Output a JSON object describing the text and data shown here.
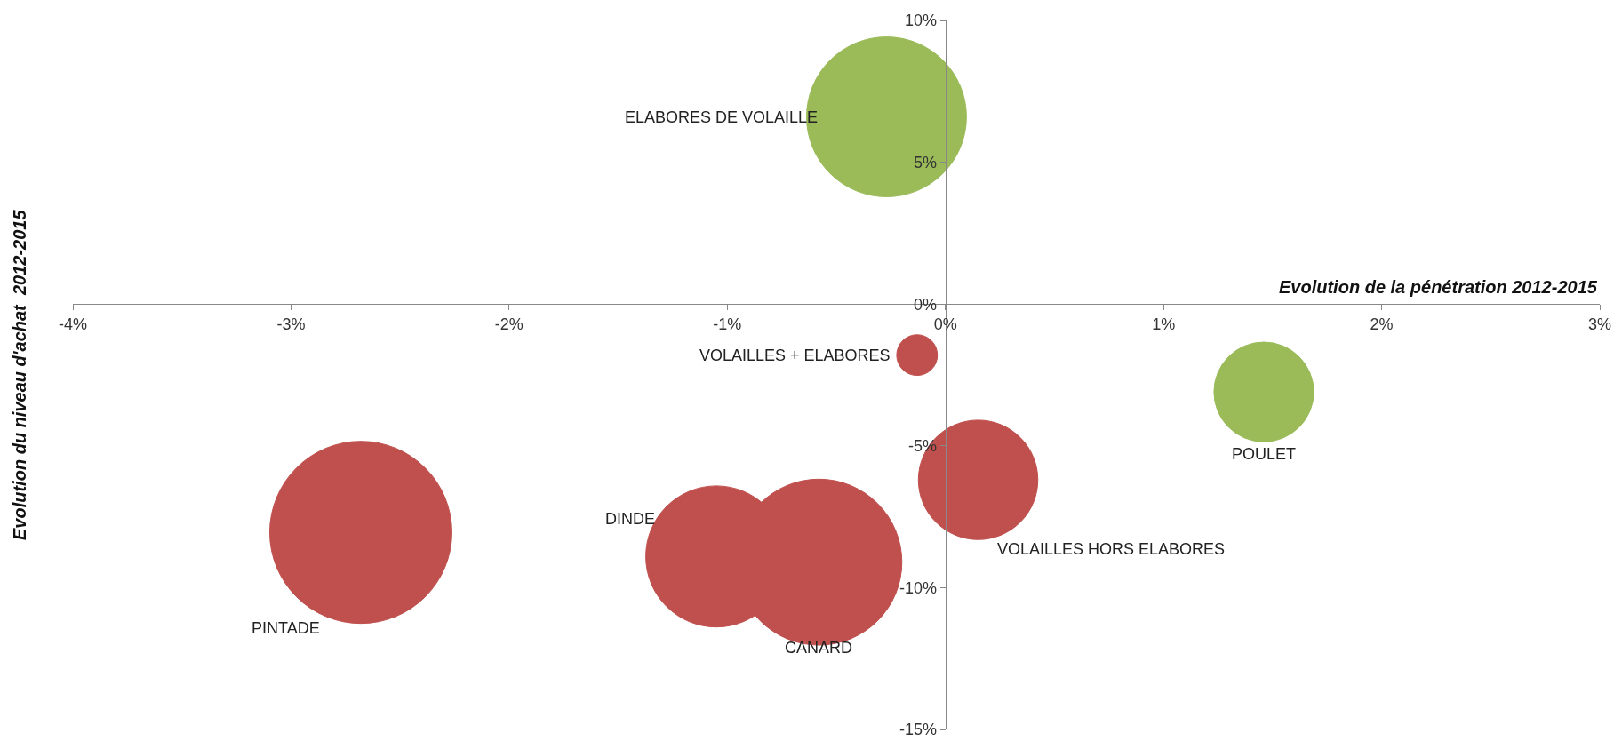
{
  "chart_data": {
    "type": "bubble",
    "xlabel": "Evolution de la pénétration 2012-2015",
    "ylabel": "Evolution du niveau d'achat  2012-2015",
    "xlim": [
      -4,
      3
    ],
    "xticks": [
      {
        "value": -4,
        "label": "-4%"
      },
      {
        "value": -3,
        "label": "-3%"
      },
      {
        "value": -2,
        "label": "-2%"
      },
      {
        "value": -1,
        "label": "-1%"
      },
      {
        "value": 0,
        "label": "0%"
      },
      {
        "value": 1,
        "label": "1%"
      },
      {
        "value": 2,
        "label": "2%"
      },
      {
        "value": 3,
        "label": "3%"
      }
    ],
    "ylim": [
      -15,
      10
    ],
    "yticks": [
      {
        "value": -15,
        "label": "-15%"
      },
      {
        "value": -10,
        "label": "-10%"
      },
      {
        "value": -5,
        "label": "-5%"
      },
      {
        "value": 0,
        "label": "0%"
      },
      {
        "value": 5,
        "label": "5%"
      },
      {
        "value": 10,
        "label": "10%"
      }
    ],
    "legend": false,
    "series": [
      {
        "name": "ELABORES DE VOLAILLE",
        "color": "#9bbb59",
        "x": [
          -0.27
        ],
        "values": [
          6.6
        ],
        "sizes": [
          0.77
        ]
      },
      {
        "name": "POULET",
        "color": "#9bbb59",
        "x": [
          1.46
        ],
        "values": [
          -3.1
        ],
        "sizes": [
          0.3
        ]
      },
      {
        "name": "VOLAILLES + ELABORES",
        "color": "#c0504d",
        "x": [
          -0.13
        ],
        "values": [
          -1.8
        ],
        "sizes": [
          0.05
        ]
      },
      {
        "name": "VOLAILLES HORS ELABORES",
        "color": "#c0504d",
        "x": [
          0.15
        ],
        "values": [
          -6.2
        ],
        "sizes": [
          0.43
        ]
      },
      {
        "name": "PINTADE",
        "color": "#c0504d",
        "x": [
          -2.68
        ],
        "values": [
          -8.05
        ],
        "sizes": [
          1
        ]
      },
      {
        "name": "DINDE",
        "color": "#c0504d",
        "x": [
          -1.05
        ],
        "values": [
          -8.9
        ],
        "sizes": [
          0.6
        ]
      },
      {
        "name": "CANARD",
        "color": "#c0504d",
        "x": [
          -0.58
        ],
        "values": [
          -9.1
        ],
        "sizes": [
          0.83
        ]
      }
    ]
  }
}
